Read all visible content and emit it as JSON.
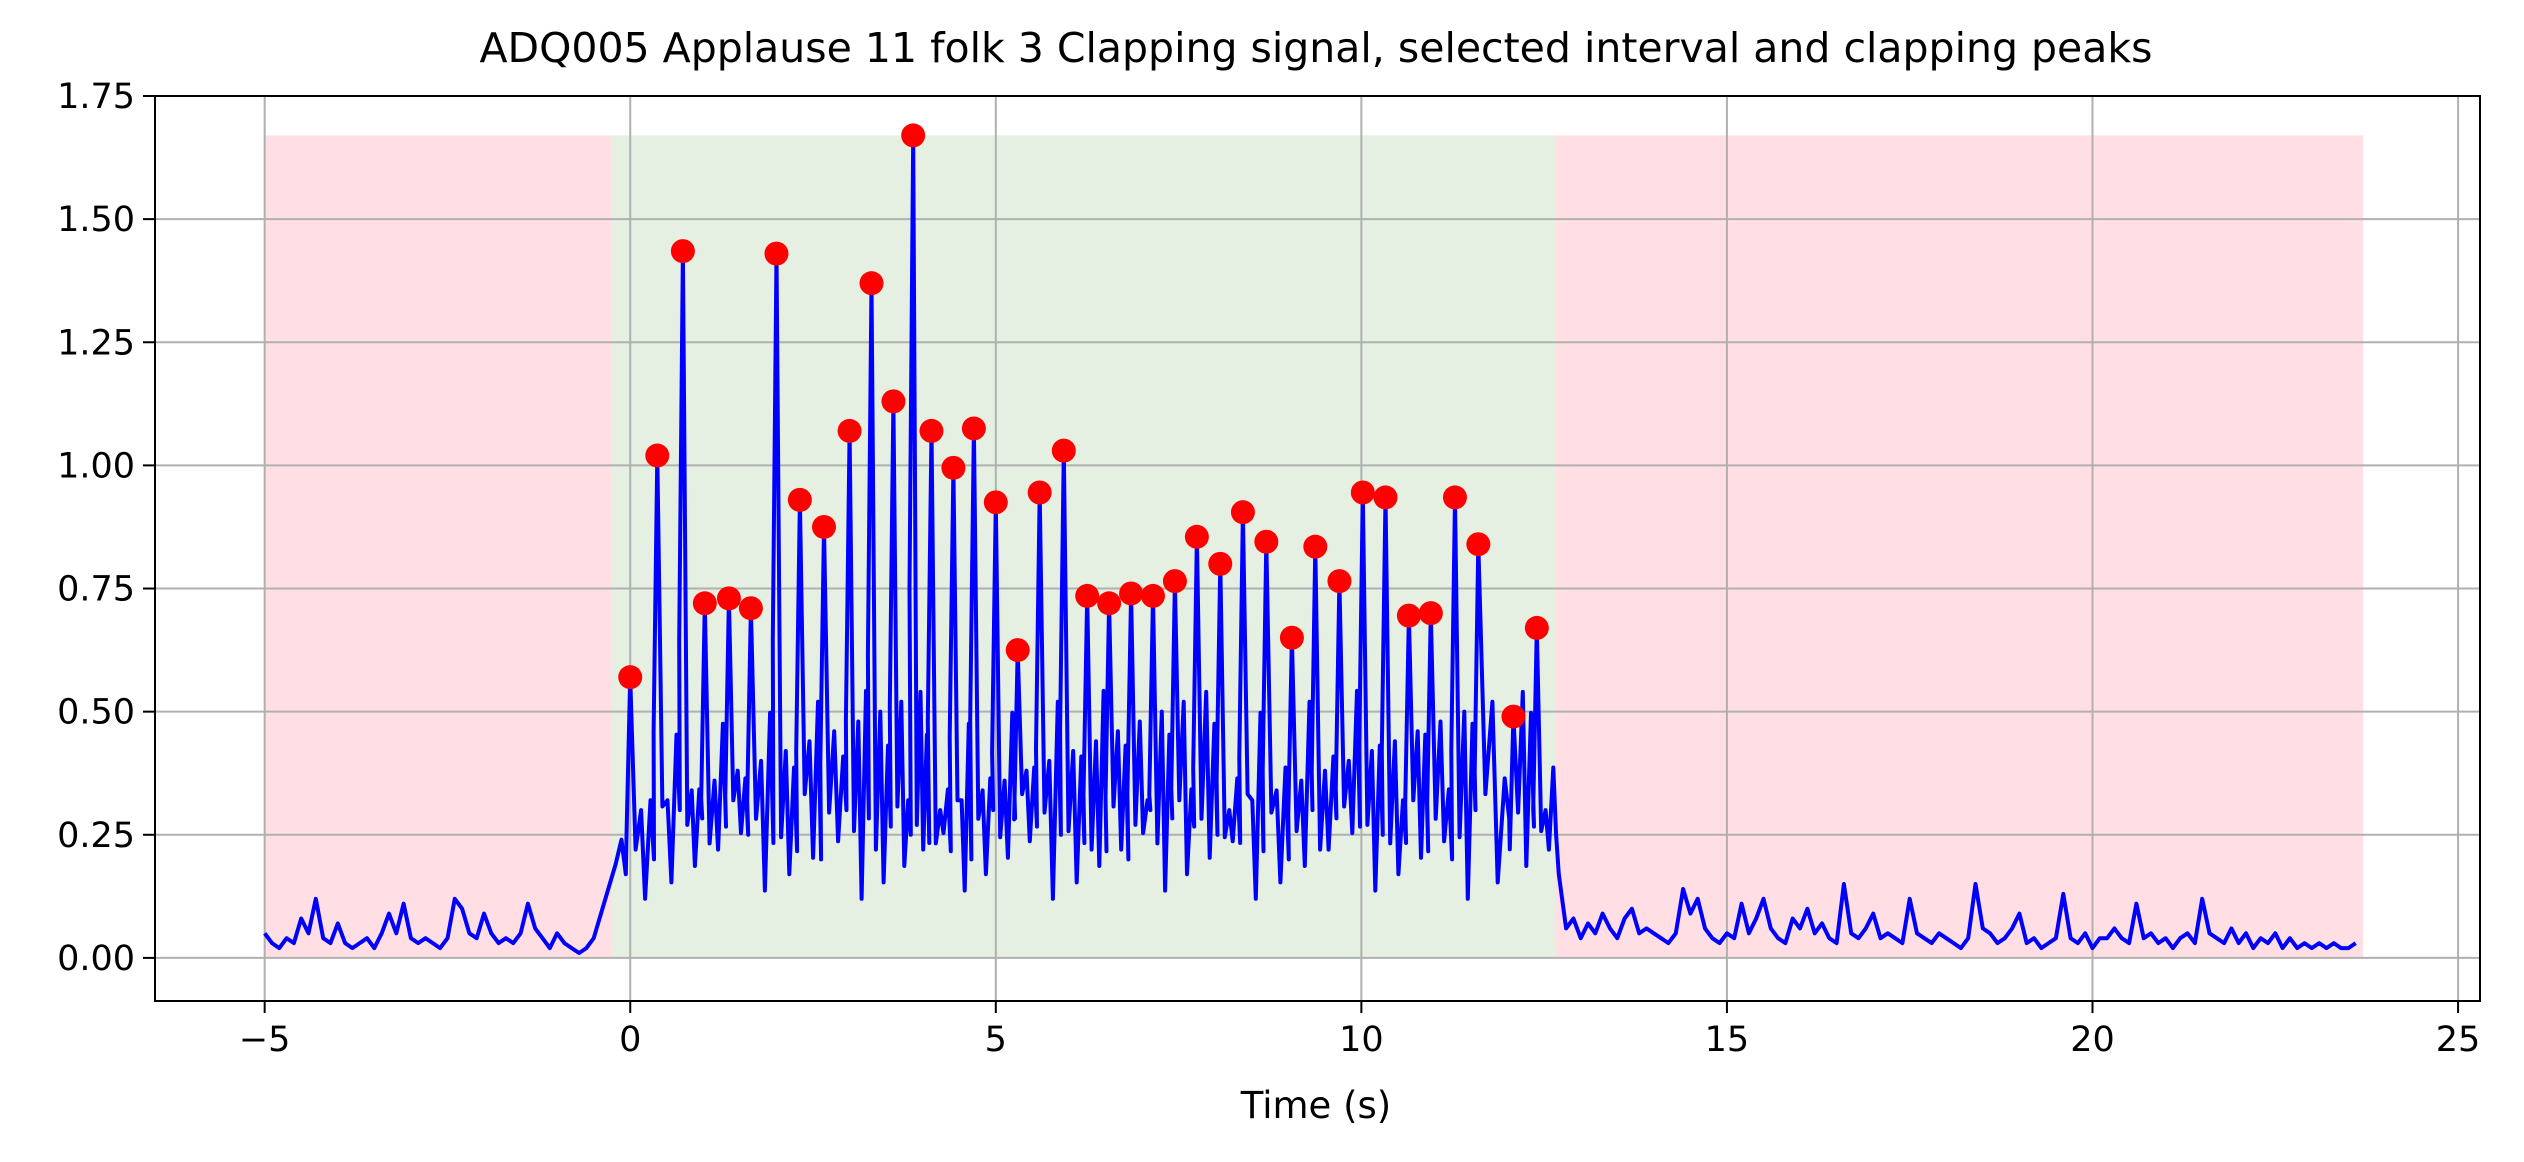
{
  "chart_data": {
    "type": "line",
    "title": "ADQ005 Applause 11 folk 3 Clapping signal, selected interval and clapping peaks",
    "xlabel": "Time (s)",
    "ylabel": "",
    "xlim": [
      -6.5,
      25.3
    ],
    "ylim": [
      -0.0875,
      1.75
    ],
    "xticks": [
      -5,
      0,
      5,
      10,
      15,
      20,
      25
    ],
    "xtick_labels": [
      "−5",
      "0",
      "5",
      "10",
      "15",
      "20",
      "25"
    ],
    "yticks": [
      0.0,
      0.25,
      0.5,
      0.75,
      1.0,
      1.25,
      1.5,
      1.75
    ],
    "ytick_labels": [
      "0.00",
      "0.25",
      "0.50",
      "0.75",
      "1.00",
      "1.25",
      "1.50",
      "1.75"
    ],
    "grid": true,
    "shaded_regions": [
      {
        "x0": -5.0,
        "x1": -0.25,
        "y0": 0.0,
        "y1": 1.67,
        "color": "#ffdfe3"
      },
      {
        "x0": -0.25,
        "x1": 12.65,
        "y0": 0.0,
        "y1": 1.67,
        "color": "#e5f0e3"
      },
      {
        "x0": 12.65,
        "x1": 23.7,
        "y0": 0.0,
        "y1": 1.67,
        "color": "#ffdfe3"
      }
    ],
    "series": [
      {
        "kind": "line",
        "color": "#0000ff",
        "x_start": -5.0,
        "x_step": 0.1,
        "baseline_before": [
          0.05,
          0.03,
          0.02,
          0.04,
          0.03,
          0.08,
          0.05,
          0.12,
          0.04,
          0.03,
          0.07,
          0.03,
          0.02,
          0.03,
          0.04,
          0.02,
          0.05,
          0.09,
          0.05,
          0.11,
          0.04,
          0.03,
          0.04,
          0.03,
          0.02,
          0.04,
          0.12,
          0.1,
          0.05,
          0.04,
          0.09,
          0.05,
          0.03,
          0.04,
          0.03,
          0.05,
          0.11,
          0.06,
          0.04,
          0.02,
          0.05,
          0.03,
          0.02,
          0.01,
          0.02,
          0.04,
          0.09
        ],
        "baseline_after": [
          0.17,
          0.06,
          0.08,
          0.04,
          0.07,
          0.05,
          0.09,
          0.06,
          0.04,
          0.08,
          0.1,
          0.05,
          0.06,
          0.05,
          0.04,
          0.03,
          0.05,
          0.14,
          0.09,
          0.12,
          0.06,
          0.04,
          0.03,
          0.05,
          0.04,
          0.11,
          0.05,
          0.08,
          0.12,
          0.06,
          0.04,
          0.03,
          0.08,
          0.06,
          0.1,
          0.05,
          0.07,
          0.04,
          0.03,
          0.15,
          0.05,
          0.04,
          0.06,
          0.09,
          0.04,
          0.05,
          0.04,
          0.03,
          0.12,
          0.05,
          0.04,
          0.03,
          0.05,
          0.04,
          0.03,
          0.02,
          0.04,
          0.15,
          0.06,
          0.05,
          0.03,
          0.04,
          0.06,
          0.09,
          0.03,
          0.04,
          0.02,
          0.03,
          0.04,
          0.13,
          0.04,
          0.03,
          0.05,
          0.02,
          0.04,
          0.04,
          0.06,
          0.04,
          0.03,
          0.11,
          0.04,
          0.05,
          0.03,
          0.04,
          0.02,
          0.04,
          0.05,
          0.03,
          0.12,
          0.05,
          0.04,
          0.03,
          0.06,
          0.03,
          0.05,
          0.02,
          0.04,
          0.03,
          0.05,
          0.02,
          0.04,
          0.02,
          0.03,
          0.02,
          0.03,
          0.02,
          0.03,
          0.02,
          0.02,
          0.03
        ]
      },
      {
        "kind": "peaks",
        "color": "#ff0000",
        "x": [
          0.0,
          0.37,
          0.72,
          1.02,
          1.35,
          1.65,
          2.0,
          2.32,
          2.65,
          3.0,
          3.3,
          3.6,
          3.87,
          4.12,
          4.42,
          4.7,
          5.0,
          5.3,
          5.6,
          5.93,
          6.25,
          6.55,
          6.85,
          7.15,
          7.45,
          7.75,
          8.07,
          8.38,
          8.7,
          9.05,
          9.37,
          9.7,
          10.02,
          10.33,
          10.65,
          10.95,
          11.28,
          11.6,
          12.08,
          12.4
        ],
        "y": [
          0.57,
          1.02,
          1.435,
          0.72,
          0.73,
          0.71,
          1.43,
          0.93,
          0.875,
          1.07,
          1.37,
          1.13,
          1.67,
          1.07,
          0.995,
          1.075,
          0.925,
          0.625,
          0.945,
          1.03,
          0.735,
          0.72,
          0.74,
          0.735,
          0.765,
          0.855,
          0.8,
          0.905,
          0.845,
          0.65,
          0.835,
          0.765,
          0.945,
          0.935,
          0.695,
          0.7,
          0.935,
          0.84,
          0.49,
          0.67
        ]
      }
    ]
  }
}
